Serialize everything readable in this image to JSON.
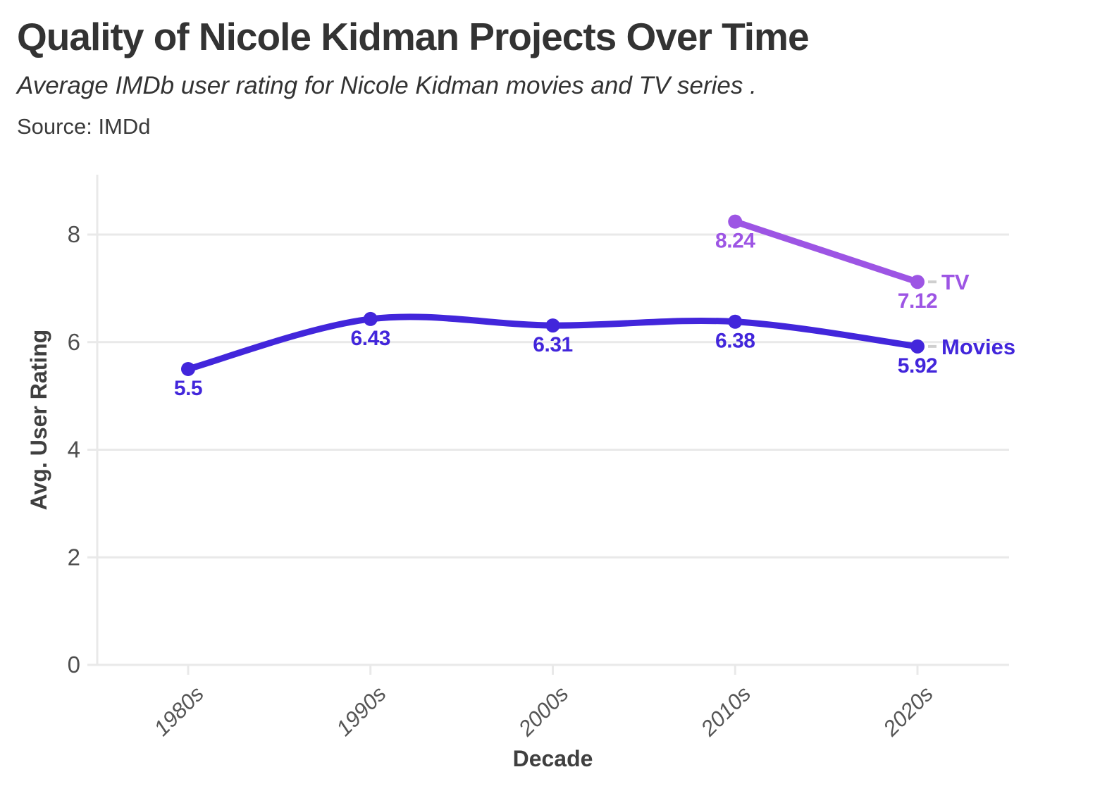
{
  "header": {
    "title": "Quality of Nicole Kidman Projects Over Time",
    "subtitle": "Average IMDb user rating for Nicole Kidman movies and TV series .",
    "source": "Source: IMDd"
  },
  "chart_data": {
    "type": "line",
    "title": "Quality of Nicole Kidman Projects Over Time",
    "subtitle": "Average IMDb user rating for Nicole Kidman movies and TV series .",
    "source": "Source: IMDd",
    "xlabel": "Decade",
    "ylabel": "Avg. User Rating",
    "categories": [
      "1980s",
      "1990s",
      "2000s",
      "2010s",
      "2020s"
    ],
    "series": [
      {
        "name": "Movies",
        "color": "#4226db",
        "values": [
          5.5,
          6.43,
          6.31,
          6.38,
          5.92
        ],
        "point_labels": [
          "5.5",
          "6.43",
          "6.31",
          "6.38",
          "5.92"
        ]
      },
      {
        "name": "TV",
        "color": "#9d55e4",
        "values": [
          null,
          null,
          null,
          8.24,
          7.12
        ],
        "point_labels": [
          null,
          null,
          null,
          "8.24",
          "7.12"
        ]
      }
    ],
    "ylim": [
      0,
      9.1
    ],
    "yticks": [
      0,
      2,
      4,
      6,
      8
    ],
    "grid": true,
    "legend_position": "end-of-line"
  },
  "style": {
    "movies_color": "#4226db",
    "tv_color": "#9d55e4",
    "grid_color": "#e9e9e9",
    "tick_label_color": "#4f4f4f",
    "axis_title_color": "#3f3f3f",
    "end_dash_color": "#cfcfcf",
    "title_color": "#333333",
    "background_color": "#ffffff"
  }
}
